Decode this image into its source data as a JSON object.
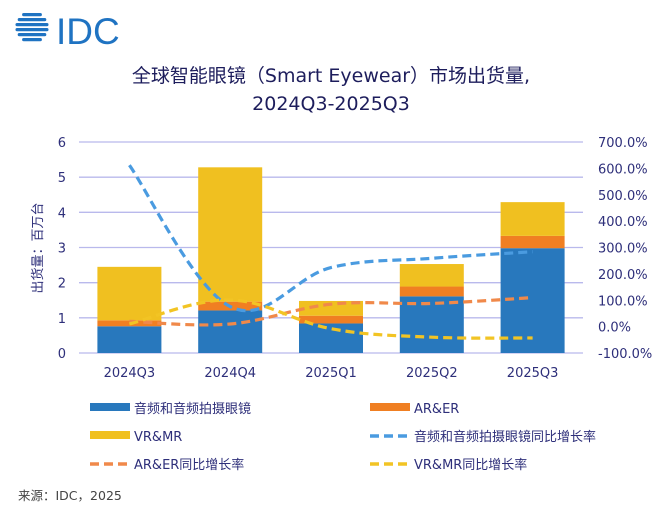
{
  "logo": {
    "text": "IDC",
    "color": "#1f73c2"
  },
  "source": "来源：IDC，2025",
  "chart_data": {
    "type": "bar",
    "stacked": true,
    "title": [
      "全球智能眼镜（Smart Eyewear）市场出货量,",
      "2024Q3-2025Q3"
    ],
    "ylabel": "出货量：百万台",
    "categories": [
      "2024Q3",
      "2024Q4",
      "2025Q1",
      "2025Q2",
      "2025Q3"
    ],
    "ylim": [
      0,
      6
    ],
    "yticks": [
      "0",
      "1",
      "2",
      "3",
      "4",
      "5",
      "6"
    ],
    "y2lim": [
      -100,
      700
    ],
    "y2ticks": [
      "-100.0%",
      "0.0%",
      "100.0%",
      "200.0%",
      "300.0%",
      "400.0%",
      "500.0%",
      "600.0%",
      "700.0%"
    ],
    "grid": true,
    "legend_position": "bottom",
    "series": [
      {
        "name": "音频和音频拍摄眼镜",
        "values": [
          0.76,
          1.21,
          0.84,
          1.61,
          2.98
        ],
        "color": "#2878bd"
      },
      {
        "name": "AR&ER",
        "values": [
          0.17,
          0.25,
          0.22,
          0.28,
          0.35
        ],
        "color": "#f07f22"
      },
      {
        "name": "VR&MR",
        "values": [
          1.52,
          3.82,
          0.42,
          0.64,
          0.96
        ],
        "color": "#f0c020"
      }
    ],
    "line_series": [
      {
        "name": "音频和音频拍摄眼镜同比增长率",
        "values": [
          612,
          76,
          224,
          259,
          284
        ],
        "color": "#4a9be0",
        "axis": "right"
      },
      {
        "name": "AR&ER同比增长率",
        "values": [
          20,
          10,
          85,
          88,
          110
        ],
        "color": "#f0894a",
        "axis": "right"
      },
      {
        "name": "VR&MR同比增长率",
        "values": [
          10,
          101,
          -8,
          -40,
          -43
        ],
        "color": "#f2c424",
        "axis": "right"
      }
    ]
  }
}
